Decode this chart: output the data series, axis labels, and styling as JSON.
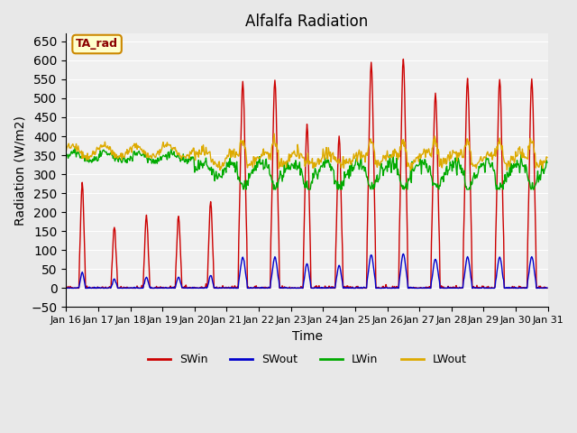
{
  "title": "Alfalfa Radiation",
  "xlabel": "Time",
  "ylabel": "Radiation (W/m2)",
  "ylim": [
    -50,
    670
  ],
  "yticks": [
    -50,
    0,
    50,
    100,
    150,
    200,
    250,
    300,
    350,
    400,
    450,
    500,
    550,
    600,
    650
  ],
  "legend": [
    "SWin",
    "SWout",
    "LWin",
    "LWout"
  ],
  "legend_colors": [
    "#cc0000",
    "#0000cc",
    "#00aa00",
    "#ddaa00"
  ],
  "annotation_text": "TA_rad",
  "annotation_bg": "#ffffcc",
  "annotation_border": "#cc8800",
  "bg_color": "#e8e8e8",
  "plot_bg": "#f0f0f0",
  "line_width": 1.0,
  "xtick_labels": [
    "Jan 16",
    "Jan 17",
    "Jan 18",
    "Jan 19",
    "Jan 20",
    "Jan 21",
    "Jan 22",
    "Jan 23",
    "Jan 24",
    "Jan 25",
    "Jan 26",
    "Jan 27",
    "Jan 28",
    "Jan 29",
    "Jan 30",
    "Jan 31"
  ],
  "n_days": 15,
  "hours_per_day": 24,
  "dt_hours": 0.5
}
